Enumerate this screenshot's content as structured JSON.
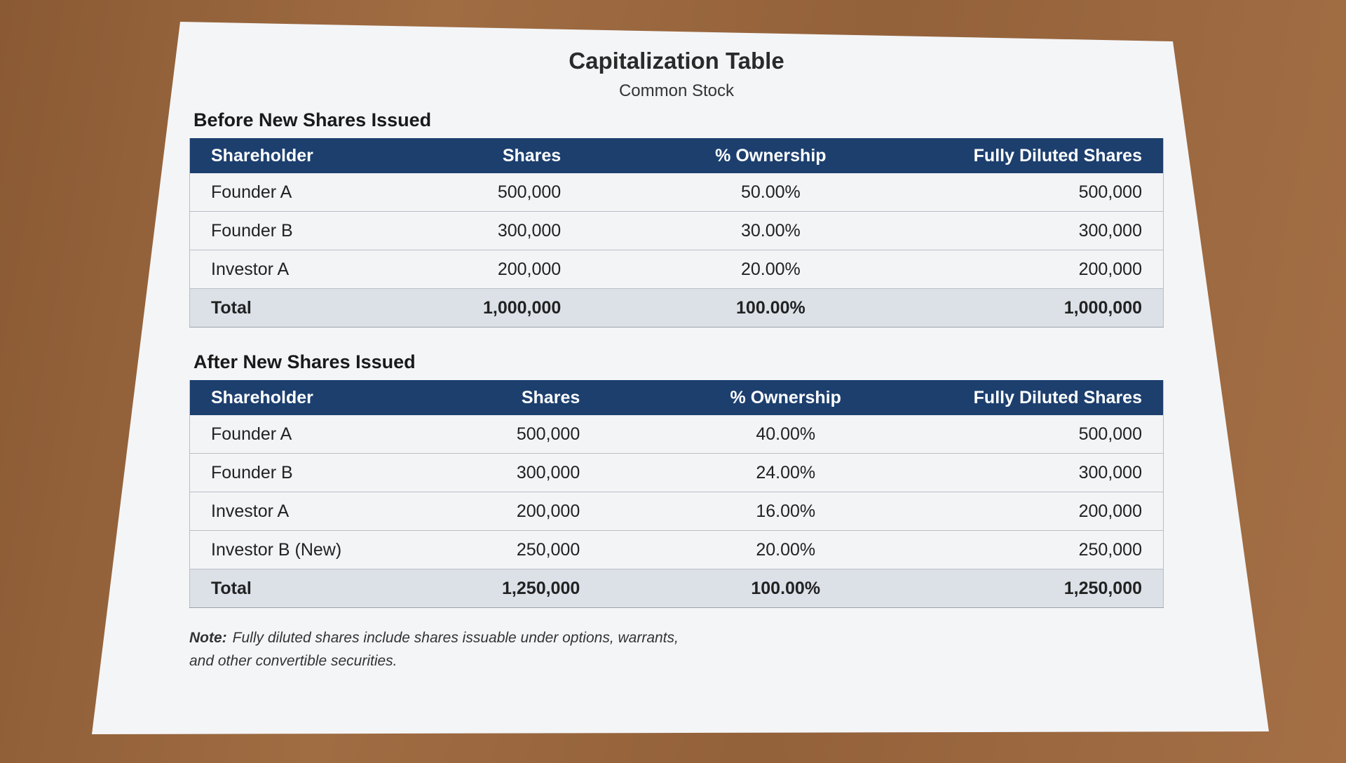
{
  "header": {
    "title": "Capitalization Table",
    "subtitle": "Common Stock"
  },
  "tables": [
    {
      "title": "Before New Shares Issued",
      "columns": [
        "Shareholder",
        "Shares",
        "% Ownership",
        "Fully Diluted Shares"
      ],
      "rows": [
        [
          "Founder A",
          "500,000",
          "50.00%",
          "500,000"
        ],
        [
          "Founder B",
          "300,000",
          "30.00%",
          "300,000"
        ],
        [
          "Investor A",
          "200,000",
          "20.00%",
          "200,000"
        ]
      ],
      "total": [
        "Total",
        "1,000,000",
        "100.00%",
        "1,000,000"
      ]
    },
    {
      "title": "After New Shares Issued",
      "columns": [
        "Shareholder",
        "Shares",
        "% Ownership",
        "Fully Diluted Shares"
      ],
      "rows": [
        [
          "Founder A",
          "500,000",
          "40.00%",
          "500,000"
        ],
        [
          "Founder B",
          "300,000",
          "24.00%",
          "300,000"
        ],
        [
          "Investor A",
          "200,000",
          "16.00%",
          "200,000"
        ],
        [
          "Investor B (New)",
          "250,000",
          "20.00%",
          "250,000"
        ]
      ],
      "total": [
        "Total",
        "1,250,000",
        "100.00%",
        "1,250,000"
      ]
    }
  ],
  "note": {
    "label": "Note:",
    "text": "Fully diluted shares include shares issuable under options, warrants, and other convertible securities."
  }
}
